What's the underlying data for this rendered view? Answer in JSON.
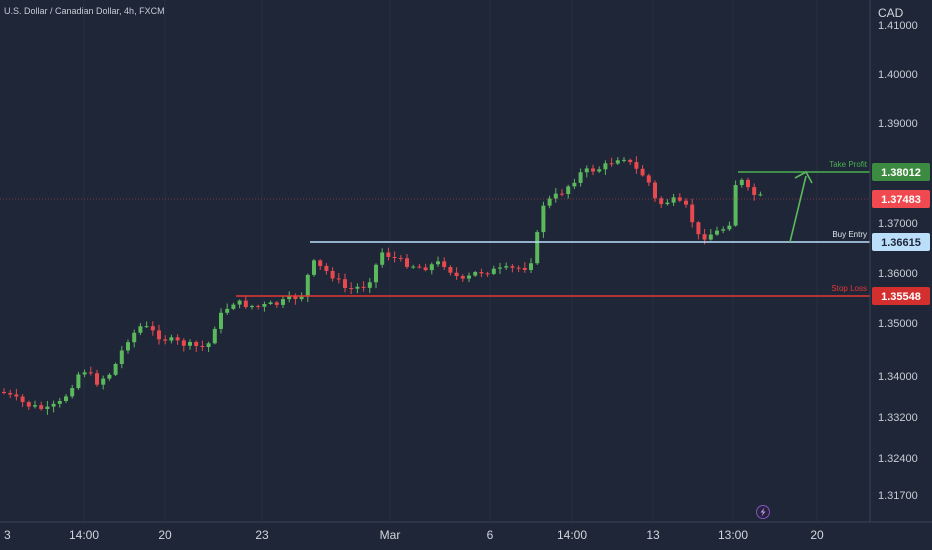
{
  "symbol": {
    "title": "U.S. Dollar / Canadian Dollar, 4h, FXCM"
  },
  "axis": {
    "currency": "CAD",
    "price_ticks": [
      "1.41000",
      "1.40000",
      "1.39000",
      "1.37000",
      "1.36000",
      "1.35000",
      "1.34000",
      "1.33200",
      "1.32400",
      "1.31700"
    ],
    "time_ticks": [
      "3",
      "14:00",
      "20",
      "23",
      "Mar",
      "6",
      "14:00",
      "13",
      "13:00",
      "20"
    ]
  },
  "levels": {
    "take_profit": {
      "label": "Take Profit",
      "value": "1.38012",
      "color": "#4caf50"
    },
    "buy_entry": {
      "label": "Buy Entry",
      "value": "1.36615",
      "color": "#bbdefb"
    },
    "stop_loss": {
      "label": "Stop Loss",
      "value": "1.35548",
      "color": "#e53935"
    },
    "current": {
      "value": "1.37483",
      "color": "#f0494f"
    }
  },
  "colors": {
    "background": "#1e2637",
    "up_candle": "#5cb85c",
    "down_candle": "#e8494f",
    "grid": "#2a3346"
  },
  "icons": {
    "bolt": "lightning-bolt-icon"
  }
}
